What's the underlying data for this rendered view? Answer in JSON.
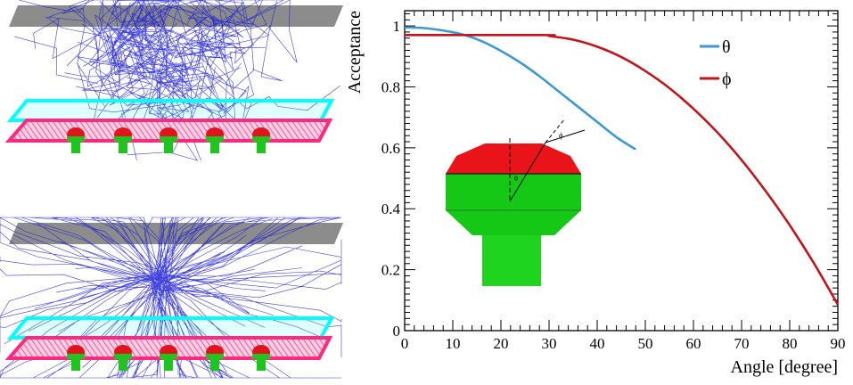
{
  "chart_data": {
    "type": "line",
    "xlabel": "Angle [degree]",
    "ylabel": "Acceptance",
    "xlim": [
      0,
      90
    ],
    "ylim": [
      0,
      1.05
    ],
    "xticks": [
      "0",
      "10",
      "20",
      "30",
      "40",
      "50",
      "60",
      "70",
      "80",
      "90"
    ],
    "yticks": [
      "0",
      "0.2",
      "0.4",
      "0.6",
      "0.8",
      "1"
    ],
    "legend_position": "top-right",
    "grid": false,
    "series": [
      {
        "name": "θ",
        "color": "#3d9ad1",
        "x": [
          0,
          4,
          8,
          12,
          16,
          20,
          24,
          28,
          32,
          36,
          40,
          44,
          48
        ],
        "y": [
          0.995,
          0.993,
          0.985,
          0.972,
          0.95,
          0.918,
          0.88,
          0.835,
          0.785,
          0.735,
          0.685,
          0.635,
          0.595
        ]
      },
      {
        "name": "ϕ",
        "color": "#c0161b",
        "x": [
          0,
          29,
          30,
          35,
          40,
          45,
          50,
          55,
          60,
          65,
          70,
          75,
          80,
          85,
          90
        ],
        "y": [
          0.97,
          0.97,
          0.967,
          0.955,
          0.932,
          0.898,
          0.852,
          0.796,
          0.728,
          0.65,
          0.56,
          0.458,
          0.346,
          0.222,
          0.085
        ]
      }
    ],
    "inset": {
      "labels": [
        "ϕ",
        "θ"
      ],
      "colors": {
        "cap": "#e8141a",
        "body": "#16c816",
        "stem": "#1fd41f"
      }
    }
  },
  "simulations": {
    "colors": {
      "tracks": "#1a1adb",
      "top_plate": "#8c8c8c",
      "cyan_plate": "#00ffff",
      "pink_plate": "#ff2a7f",
      "pmt_cap": "#e0141a",
      "pmt_stem": "#1fc41f"
    }
  }
}
